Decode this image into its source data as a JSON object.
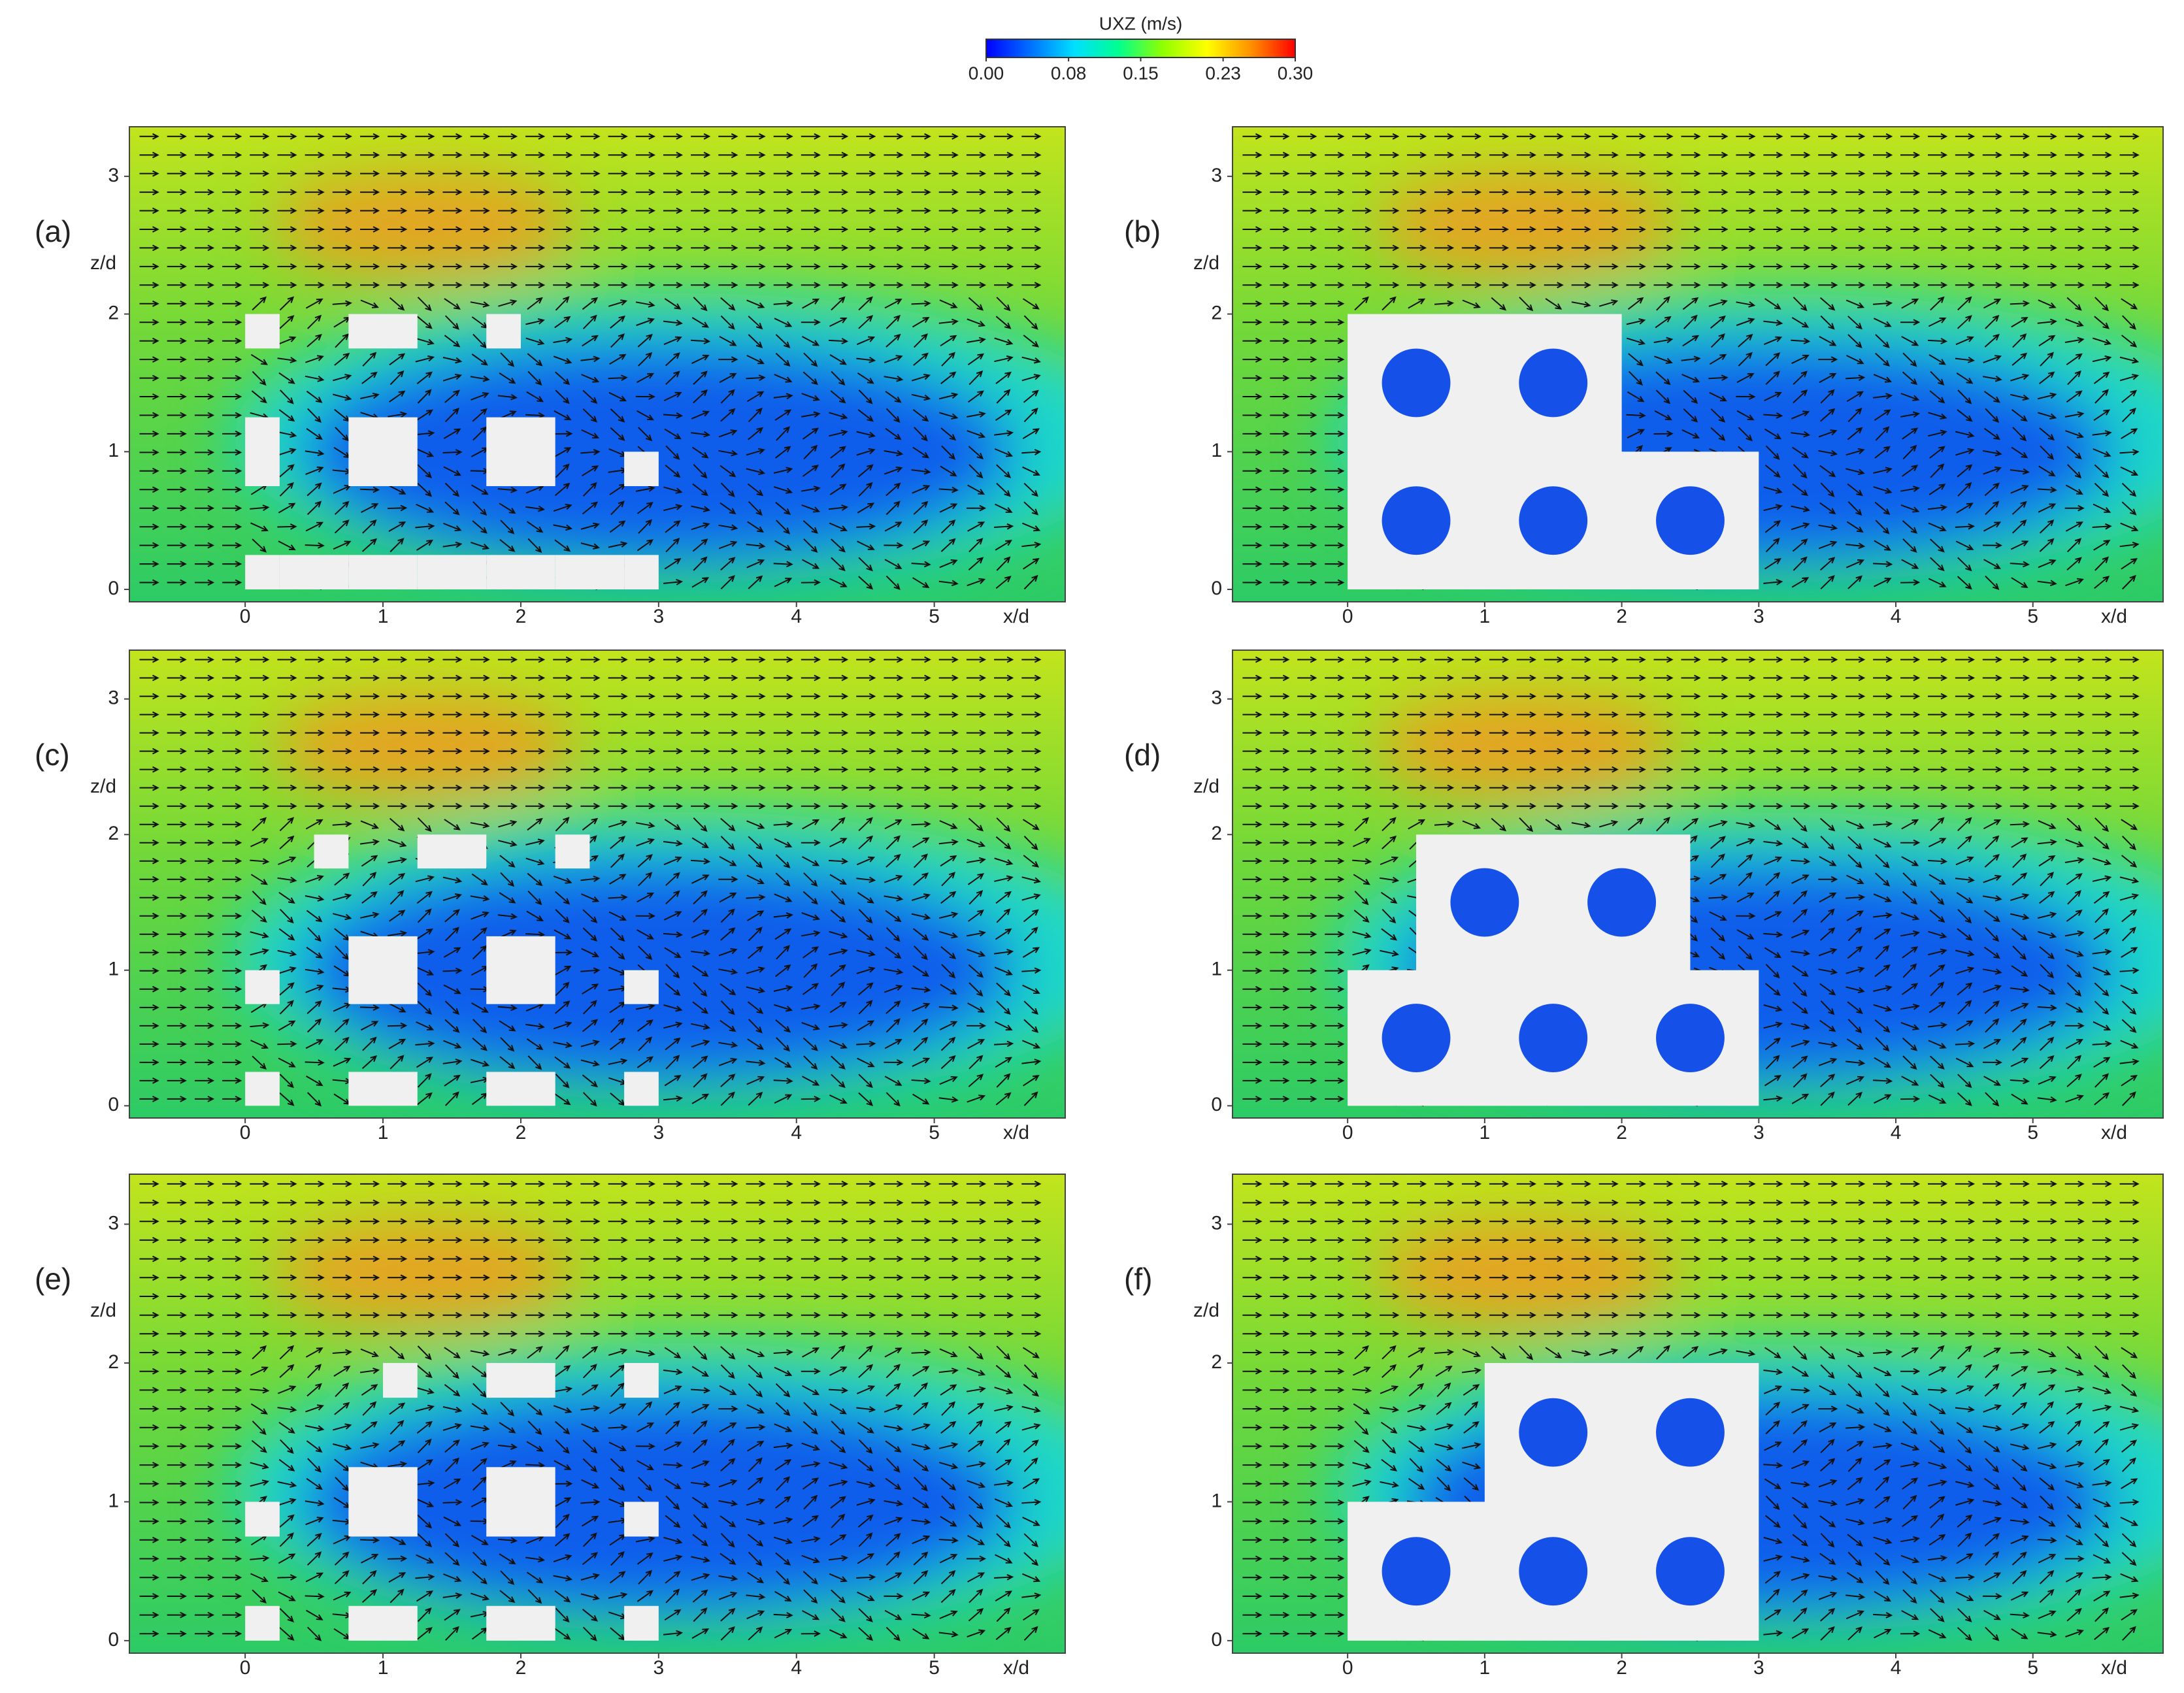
{
  "colorbar": {
    "title": "UXZ (m/s)",
    "lim": [
      0,
      0.3
    ],
    "ticks": [
      {
        "value": 0,
        "label": "0.00"
      },
      0.08,
      0.15,
      0.23,
      {
        "value": 0.3,
        "label": "0.30"
      }
    ],
    "colors": [
      "#0000ff",
      "#0070ff",
      "#00e0ff",
      "#00ff90",
      "#90ff00",
      "#ffff00",
      "#ff9000",
      "#ff0000"
    ]
  },
  "chart_data": [
    {
      "type": "contour",
      "label": "(a)",
      "xlabel": "x/d",
      "ylabel": "z/d",
      "xlim": [
        -0.84,
        5.95
      ],
      "ylim": [
        -0.09,
        3.36
      ],
      "xticks": [
        0,
        1,
        2,
        3,
        4,
        5
      ],
      "yticks": [
        0,
        1,
        2,
        3
      ]
    },
    {
      "type": "contour",
      "label": "(b)",
      "xlabel": "x/d",
      "ylabel": "z/d",
      "xlim": [
        -0.84,
        5.95
      ],
      "ylim": [
        -0.09,
        3.36
      ],
      "xticks": [
        0,
        1,
        2,
        3,
        4,
        5
      ],
      "yticks": [
        0,
        1,
        2,
        3
      ]
    },
    {
      "type": "contour",
      "label": "(c)",
      "xlabel": "x/d",
      "ylabel": "z/d",
      "xlim": [
        -0.84,
        5.95
      ],
      "ylim": [
        -0.09,
        3.36
      ],
      "xticks": [
        0,
        1,
        2,
        3,
        4,
        5
      ],
      "yticks": [
        0,
        1,
        2,
        3
      ]
    },
    {
      "type": "contour",
      "label": "(d)",
      "xlabel": "x/d",
      "ylabel": "z/d",
      "xlim": [
        -0.84,
        5.95
      ],
      "ylim": [
        -0.09,
        3.36
      ],
      "xticks": [
        0,
        1,
        2,
        3,
        4,
        5
      ],
      "yticks": [
        0,
        1,
        2,
        3
      ]
    },
    {
      "type": "contour",
      "label": "(e)",
      "xlabel": "x/d",
      "ylabel": "z/d",
      "xlim": [
        -0.84,
        5.95
      ],
      "ylim": [
        -0.09,
        3.36
      ],
      "xticks": [
        0,
        1,
        2,
        3,
        4,
        5
      ],
      "yticks": [
        0,
        1,
        2,
        3
      ]
    },
    {
      "type": "contour",
      "label": "(f)",
      "xlabel": "x/d",
      "ylabel": "z/d",
      "xlim": [
        -0.84,
        5.95
      ],
      "ylim": [
        -0.09,
        3.36
      ],
      "xticks": [
        0,
        1,
        2,
        3,
        4,
        5
      ],
      "yticks": [
        0,
        1,
        2,
        3
      ]
    }
  ]
}
